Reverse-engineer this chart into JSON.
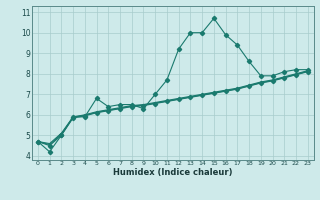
{
  "xlabel": "Humidex (Indice chaleur)",
  "x": [
    0,
    1,
    2,
    3,
    4,
    5,
    6,
    7,
    8,
    9,
    10,
    11,
    12,
    13,
    14,
    15,
    16,
    17,
    18,
    19,
    20,
    21,
    22,
    23
  ],
  "line1": [
    4.7,
    4.2,
    5.0,
    5.9,
    5.9,
    6.8,
    6.4,
    6.5,
    6.5,
    6.3,
    7.0,
    7.7,
    9.2,
    10.0,
    10.0,
    10.7,
    9.9,
    9.4,
    8.6,
    7.9,
    7.9,
    8.1,
    8.2,
    8.2
  ],
  "line2": [
    4.7,
    4.5,
    5.0,
    5.85,
    5.95,
    6.1,
    6.2,
    6.3,
    6.4,
    6.45,
    6.55,
    6.65,
    6.75,
    6.85,
    6.95,
    7.05,
    7.15,
    7.25,
    7.4,
    7.55,
    7.65,
    7.8,
    7.95,
    8.1
  ],
  "line3": [
    4.7,
    4.55,
    5.05,
    5.88,
    5.98,
    6.12,
    6.22,
    6.32,
    6.42,
    6.47,
    6.57,
    6.67,
    6.77,
    6.87,
    6.97,
    7.07,
    7.17,
    7.27,
    7.42,
    7.57,
    7.67,
    7.82,
    7.97,
    8.12
  ],
  "line4": [
    4.7,
    4.6,
    5.1,
    5.9,
    6.0,
    6.15,
    6.25,
    6.35,
    6.45,
    6.5,
    6.6,
    6.7,
    6.8,
    6.9,
    7.0,
    7.1,
    7.2,
    7.3,
    7.45,
    7.6,
    7.7,
    7.85,
    8.0,
    8.15
  ],
  "line_color": "#1a7a6e",
  "bg_color": "#ceeaea",
  "grid_color": "#a8cccc",
  "ylim": [
    3.8,
    11.3
  ],
  "xlim": [
    -0.5,
    23.5
  ],
  "yticks": [
    4,
    5,
    6,
    7,
    8,
    9,
    10,
    11
  ],
  "xticks": [
    0,
    1,
    2,
    3,
    4,
    5,
    6,
    7,
    8,
    9,
    10,
    11,
    12,
    13,
    14,
    15,
    16,
    17,
    18,
    19,
    20,
    21,
    22,
    23
  ]
}
